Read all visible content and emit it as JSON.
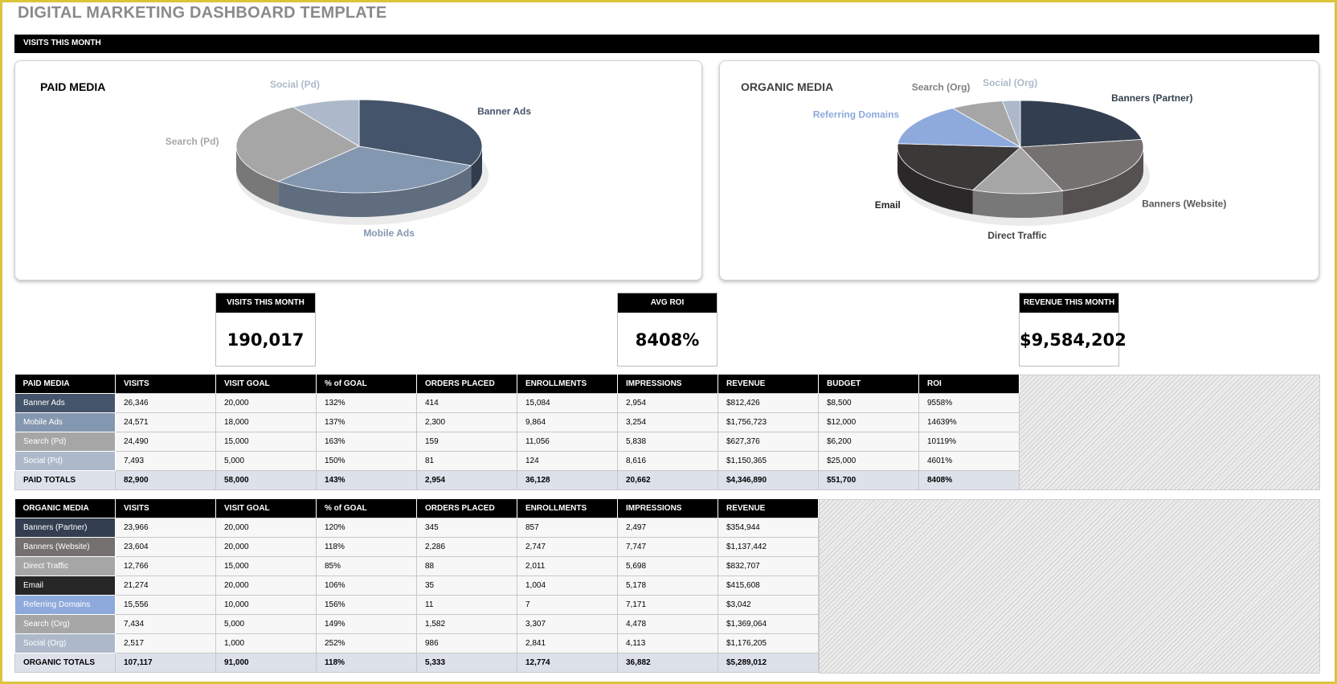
{
  "page": {
    "title": "DIGITAL MARKETING DASHBOARD TEMPLATE",
    "section_banner": "VISITS THIS MONTH"
  },
  "charts": {
    "paid": {
      "title": "PAID MEDIA",
      "slices": [
        {
          "label": "Banner Ads",
          "value": 26346,
          "color": "#44546a",
          "label_color": "#44546a"
        },
        {
          "label": "Mobile Ads",
          "value": 24571,
          "color": "#8497b0",
          "label_color": "#8497b0"
        },
        {
          "label": "Search (Pd)",
          "value": 24490,
          "color": "#a6a6a6",
          "label_color": "#a6a6a6"
        },
        {
          "label": "Social (Pd)",
          "value": 7493,
          "color": "#adb9ca",
          "label_color": "#adb9ca"
        }
      ]
    },
    "organic": {
      "title": "ORGANIC MEDIA",
      "slices": [
        {
          "label": "Banners (Partner)",
          "value": 23966,
          "color": "#333f50",
          "label_color": "#333f50"
        },
        {
          "label": "Banners (Website)",
          "value": 23604,
          "color": "#767171",
          "label_color": "#595959"
        },
        {
          "label": "Direct Traffic",
          "value": 12766,
          "color": "#a6a6a6",
          "label_color": "#404040"
        },
        {
          "label": "Email",
          "value": 21274,
          "color": "#3b3838",
          "label_color": "#262626"
        },
        {
          "label": "Referring Domains",
          "value": 15556,
          "color": "#8ea9db",
          "label_color": "#8ea9db"
        },
        {
          "label": "Search (Org)",
          "value": 7434,
          "color": "#a6a6a6",
          "label_color": "#808080"
        },
        {
          "label": "Social (Org)",
          "value": 2517,
          "color": "#adb9ca",
          "label_color": "#adb9ca"
        }
      ]
    }
  },
  "kpis": {
    "visits": {
      "label": "VISITS THIS MONTH",
      "value": "190,017"
    },
    "roi": {
      "label": "AVG ROI",
      "value": "8408%"
    },
    "revenue": {
      "label": "REVENUE THIS MONTH",
      "value": "$9,584,202"
    }
  },
  "paid_table": {
    "headers": [
      "PAID MEDIA",
      "VISITS",
      "VISIT GOAL",
      "% of GOAL",
      "ORDERS PLACED",
      "ENROLLMENTS",
      "IMPRESSIONS",
      "REVENUE",
      "BUDGET",
      "ROI"
    ],
    "rows": [
      {
        "color": "#44546a",
        "cells": [
          "Banner Ads",
          "26,346",
          "20,000",
          "132%",
          "414",
          "15,084",
          "2,954",
          "$812,426",
          "$8,500",
          "9558%"
        ]
      },
      {
        "color": "#8497b0",
        "cells": [
          "Mobile Ads",
          "24,571",
          "18,000",
          "137%",
          "2,300",
          "9,864",
          "3,254",
          "$1,756,723",
          "$12,000",
          "14639%"
        ]
      },
      {
        "color": "#a6a6a6",
        "cells": [
          "Search (Pd)",
          "24,490",
          "15,000",
          "163%",
          "159",
          "11,056",
          "5,838",
          "$627,376",
          "$6,200",
          "10119%"
        ]
      },
      {
        "color": "#adb9ca",
        "cells": [
          "Social (Pd)",
          "7,493",
          "5,000",
          "150%",
          "81",
          "124",
          "8,616",
          "$1,150,365",
          "$25,000",
          "4601%"
        ]
      }
    ],
    "total": [
      "PAID TOTALS",
      "82,900",
      "58,000",
      "143%",
      "2,954",
      "36,128",
      "20,662",
      "$4,346,890",
      "$51,700",
      "8408%"
    ]
  },
  "organic_table": {
    "headers": [
      "ORGANIC MEDIA",
      "VISITS",
      "VISIT GOAL",
      "% of GOAL",
      "ORDERS PLACED",
      "ENROLLMENTS",
      "IMPRESSIONS",
      "REVENUE"
    ],
    "rows": [
      {
        "color": "#333f50",
        "cells": [
          "Banners (Partner)",
          "23,966",
          "20,000",
          "120%",
          "345",
          "857",
          "2,497",
          "$354,944"
        ]
      },
      {
        "color": "#767171",
        "cells": [
          "Banners (Website)",
          "23,604",
          "20,000",
          "118%",
          "2,286",
          "2,747",
          "7,747",
          "$1,137,442"
        ]
      },
      {
        "color": "#a6a6a6",
        "cells": [
          "Direct Traffic",
          "12,766",
          "15,000",
          "85%",
          "88",
          "2,011",
          "5,698",
          "$832,707"
        ]
      },
      {
        "color": "#262626",
        "cells": [
          "Email",
          "21,274",
          "20,000",
          "106%",
          "35",
          "1,004",
          "5,178",
          "$415,608"
        ]
      },
      {
        "color": "#8ea9db",
        "cells": [
          "Referring Domains",
          "15,556",
          "10,000",
          "156%",
          "11",
          "7",
          "7,171",
          "$3,042"
        ]
      },
      {
        "color": "#a6a6a6",
        "cells": [
          "Search (Org)",
          "7,434",
          "5,000",
          "149%",
          "1,582",
          "3,307",
          "4,478",
          "$1,369,064"
        ]
      },
      {
        "color": "#adb9ca",
        "cells": [
          "Social (Org)",
          "2,517",
          "1,000",
          "252%",
          "986",
          "2,841",
          "4,113",
          "$1,176,205"
        ]
      }
    ],
    "total": [
      "ORGANIC TOTALS",
      "107,117",
      "91,000",
      "118%",
      "5,333",
      "12,774",
      "36,882",
      "$5,289,012"
    ]
  }
}
